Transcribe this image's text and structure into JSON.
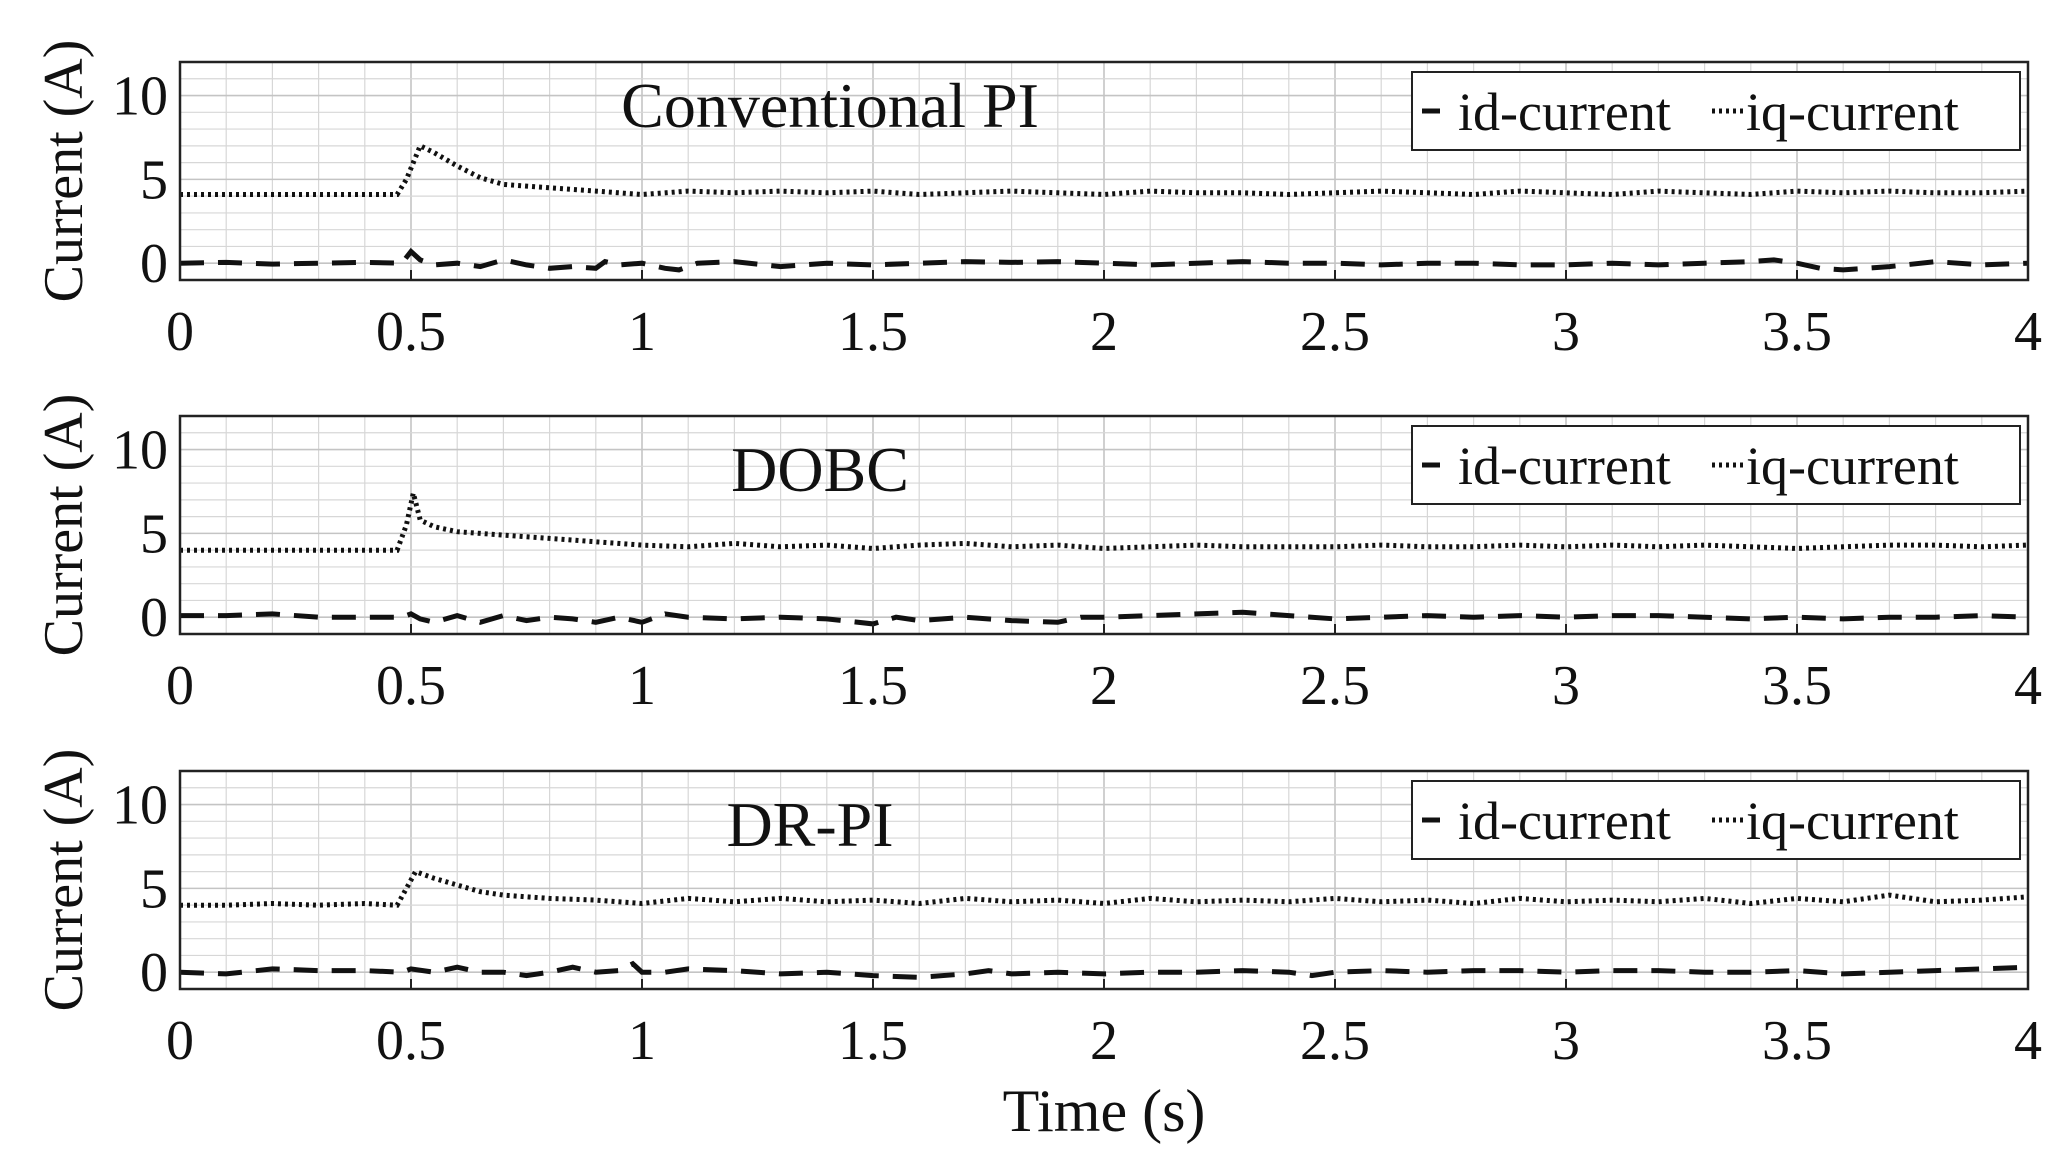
{
  "chart_data": [
    {
      "type": "line",
      "title": "Conventional PI",
      "xlabel": "",
      "ylabel": "Current (A)",
      "xlim": [
        0,
        4
      ],
      "ylim": [
        -1,
        12
      ],
      "xticks": [
        "0",
        "0.5",
        "1",
        "1.5",
        "2",
        "2.5",
        "3",
        "3.5",
        "4"
      ],
      "yticks": [
        "0",
        "5",
        "10"
      ],
      "grid": true,
      "legend_position": "top-right",
      "series": [
        {
          "name": "id-current",
          "style": "dashed",
          "x": [
            0,
            0.1,
            0.2,
            0.3,
            0.4,
            0.48,
            0.5,
            0.52,
            0.55,
            0.6,
            0.65,
            0.7,
            0.75,
            0.8,
            0.85,
            0.9,
            0.92,
            0.95,
            1.0,
            1.05,
            1.08,
            1.12,
            1.2,
            1.3,
            1.4,
            1.5,
            1.6,
            1.7,
            1.8,
            1.9,
            2.0,
            2.1,
            2.2,
            2.3,
            2.4,
            2.5,
            2.6,
            2.7,
            2.8,
            2.9,
            3.0,
            3.1,
            3.2,
            3.3,
            3.4,
            3.45,
            3.5,
            3.55,
            3.6,
            3.7,
            3.8,
            3.9,
            4.0
          ],
          "y": [
            0,
            0.05,
            -0.05,
            0,
            0.05,
            0,
            0.7,
            0.2,
            -0.1,
            0,
            -0.2,
            0.2,
            -0.1,
            -0.3,
            -0.2,
            -0.3,
            0.1,
            -0.1,
            0,
            -0.3,
            -0.4,
            0,
            0.1,
            -0.2,
            0,
            -0.1,
            0,
            0.1,
            0.05,
            0.1,
            0,
            -0.1,
            0,
            0.1,
            0,
            0,
            -0.1,
            0,
            0,
            -0.1,
            -0.1,
            0,
            -0.1,
            0,
            0.1,
            0.2,
            0,
            -0.3,
            -0.4,
            -0.2,
            0.1,
            -0.1,
            0
          ]
        },
        {
          "name": "iq-current",
          "style": "dotted",
          "x": [
            0,
            0.1,
            0.2,
            0.3,
            0.4,
            0.47,
            0.49,
            0.52,
            0.55,
            0.6,
            0.65,
            0.7,
            0.75,
            0.8,
            0.9,
            1.0,
            1.1,
            1.2,
            1.3,
            1.4,
            1.5,
            1.6,
            1.7,
            1.8,
            1.9,
            2.0,
            2.1,
            2.2,
            2.3,
            2.4,
            2.5,
            2.6,
            2.7,
            2.8,
            2.9,
            3.0,
            3.1,
            3.2,
            3.3,
            3.4,
            3.5,
            3.6,
            3.7,
            3.8,
            3.9,
            4.0
          ],
          "y": [
            4.1,
            4.1,
            4.1,
            4.1,
            4.1,
            4.1,
            5.0,
            7.0,
            6.6,
            5.8,
            5.1,
            4.7,
            4.6,
            4.5,
            4.3,
            4.1,
            4.3,
            4.2,
            4.3,
            4.2,
            4.3,
            4.1,
            4.2,
            4.3,
            4.2,
            4.1,
            4.3,
            4.2,
            4.2,
            4.1,
            4.2,
            4.3,
            4.2,
            4.1,
            4.3,
            4.2,
            4.1,
            4.3,
            4.2,
            4.1,
            4.3,
            4.2,
            4.3,
            4.2,
            4.2,
            4.3
          ]
        }
      ]
    },
    {
      "type": "line",
      "title": "DOBC",
      "xlabel": "",
      "ylabel": "Current (A)",
      "xlim": [
        0,
        4
      ],
      "ylim": [
        -1,
        12
      ],
      "xticks": [
        "0",
        "0.5",
        "1",
        "1.5",
        "2",
        "2.5",
        "3",
        "3.5",
        "4"
      ],
      "yticks": [
        "0",
        "5",
        "10"
      ],
      "grid": true,
      "legend_position": "top-right",
      "series": [
        {
          "name": "id-current",
          "style": "dashed",
          "x": [
            0,
            0.1,
            0.2,
            0.3,
            0.4,
            0.48,
            0.5,
            0.52,
            0.55,
            0.6,
            0.65,
            0.7,
            0.75,
            0.8,
            0.85,
            0.9,
            0.95,
            1.0,
            1.05,
            1.1,
            1.2,
            1.3,
            1.4,
            1.5,
            1.55,
            1.6,
            1.7,
            1.8,
            1.9,
            1.95,
            2.0,
            2.1,
            2.2,
            2.3,
            2.4,
            2.5,
            2.6,
            2.7,
            2.8,
            2.9,
            3.0,
            3.1,
            3.2,
            3.3,
            3.4,
            3.5,
            3.6,
            3.7,
            3.8,
            3.9,
            4.0
          ],
          "y": [
            0.1,
            0.1,
            0.2,
            0,
            0,
            0,
            0.2,
            -0.1,
            -0.3,
            0.1,
            -0.3,
            0.1,
            -0.2,
            0,
            -0.1,
            -0.3,
            0,
            -0.3,
            0.2,
            0,
            -0.1,
            0,
            -0.1,
            -0.4,
            0,
            -0.2,
            0,
            -0.2,
            -0.3,
            0,
            0,
            0.1,
            0.2,
            0.3,
            0.1,
            -0.1,
            0,
            0.1,
            0,
            0.1,
            0,
            0.1,
            0.1,
            0,
            -0.1,
            0,
            -0.1,
            0,
            0,
            0.1,
            0
          ]
        },
        {
          "name": "iq-current",
          "style": "dotted",
          "x": [
            0,
            0.1,
            0.2,
            0.3,
            0.4,
            0.47,
            0.49,
            0.505,
            0.52,
            0.55,
            0.6,
            0.7,
            0.8,
            0.9,
            1.0,
            1.1,
            1.2,
            1.3,
            1.4,
            1.5,
            1.6,
            1.7,
            1.8,
            1.9,
            2.0,
            2.1,
            2.2,
            2.3,
            2.4,
            2.5,
            2.6,
            2.7,
            2.8,
            2.9,
            3.0,
            3.1,
            3.2,
            3.3,
            3.4,
            3.5,
            3.6,
            3.7,
            3.8,
            3.9,
            4.0
          ],
          "y": [
            4.0,
            4.0,
            4.0,
            4.0,
            4.0,
            4.0,
            5.5,
            7.4,
            5.8,
            5.4,
            5.1,
            4.9,
            4.7,
            4.5,
            4.3,
            4.2,
            4.4,
            4.2,
            4.3,
            4.1,
            4.3,
            4.4,
            4.2,
            4.3,
            4.1,
            4.2,
            4.3,
            4.2,
            4.2,
            4.2,
            4.3,
            4.2,
            4.2,
            4.3,
            4.2,
            4.3,
            4.2,
            4.3,
            4.2,
            4.1,
            4.2,
            4.3,
            4.3,
            4.2,
            4.3
          ]
        }
      ]
    },
    {
      "type": "line",
      "title": "DR-PI",
      "xlabel": "Time (s)",
      "ylabel": "Current (A)",
      "xlim": [
        0,
        4
      ],
      "ylim": [
        -1,
        12
      ],
      "xticks": [
        "0",
        "0.5",
        "1",
        "1.5",
        "2",
        "2.5",
        "3",
        "3.5",
        "4"
      ],
      "yticks": [
        "0",
        "5",
        "10"
      ],
      "grid": true,
      "legend_position": "top-right",
      "series": [
        {
          "name": "id-current",
          "style": "dashed",
          "x": [
            0,
            0.1,
            0.2,
            0.3,
            0.4,
            0.48,
            0.5,
            0.55,
            0.6,
            0.65,
            0.7,
            0.75,
            0.8,
            0.85,
            0.9,
            0.95,
            0.98,
            1.0,
            1.05,
            1.1,
            1.2,
            1.3,
            1.4,
            1.5,
            1.6,
            1.7,
            1.75,
            1.8,
            1.9,
            2.0,
            2.1,
            2.2,
            2.3,
            2.4,
            2.45,
            2.5,
            2.6,
            2.7,
            2.8,
            2.9,
            3.0,
            3.1,
            3.2,
            3.3,
            3.4,
            3.5,
            3.6,
            3.7,
            3.8,
            3.9,
            4.0
          ],
          "y": [
            0,
            -0.1,
            0.2,
            0.1,
            0.1,
            0,
            0.2,
            0,
            0.3,
            0,
            0,
            -0.2,
            0,
            0.3,
            0,
            0.1,
            0.5,
            0,
            0,
            0.2,
            0.1,
            -0.1,
            0,
            -0.2,
            -0.3,
            -0.1,
            0.1,
            -0.1,
            0,
            -0.1,
            0,
            0,
            0.1,
            0,
            -0.2,
            0,
            0.1,
            0,
            0.1,
            0.1,
            0,
            0.1,
            0.1,
            0,
            0,
            0.1,
            -0.1,
            0,
            0.1,
            0.2,
            0.3
          ]
        },
        {
          "name": "iq-current",
          "style": "dotted",
          "x": [
            0,
            0.1,
            0.2,
            0.3,
            0.4,
            0.47,
            0.49,
            0.51,
            0.55,
            0.6,
            0.65,
            0.7,
            0.75,
            0.8,
            0.9,
            1.0,
            1.1,
            1.2,
            1.3,
            1.4,
            1.5,
            1.6,
            1.7,
            1.8,
            1.9,
            2.0,
            2.1,
            2.2,
            2.3,
            2.4,
            2.5,
            2.6,
            2.7,
            2.8,
            2.9,
            3.0,
            3.1,
            3.2,
            3.3,
            3.4,
            3.5,
            3.6,
            3.7,
            3.8,
            3.9,
            4.0
          ],
          "y": [
            4.0,
            4.0,
            4.1,
            4.0,
            4.1,
            4.0,
            5.0,
            6.0,
            5.6,
            5.2,
            4.8,
            4.6,
            4.5,
            4.4,
            4.3,
            4.1,
            4.4,
            4.2,
            4.4,
            4.2,
            4.3,
            4.1,
            4.4,
            4.2,
            4.3,
            4.1,
            4.4,
            4.2,
            4.3,
            4.2,
            4.4,
            4.2,
            4.3,
            4.1,
            4.4,
            4.2,
            4.3,
            4.2,
            4.4,
            4.1,
            4.4,
            4.2,
            4.6,
            4.2,
            4.3,
            4.5
          ]
        }
      ]
    }
  ]
}
